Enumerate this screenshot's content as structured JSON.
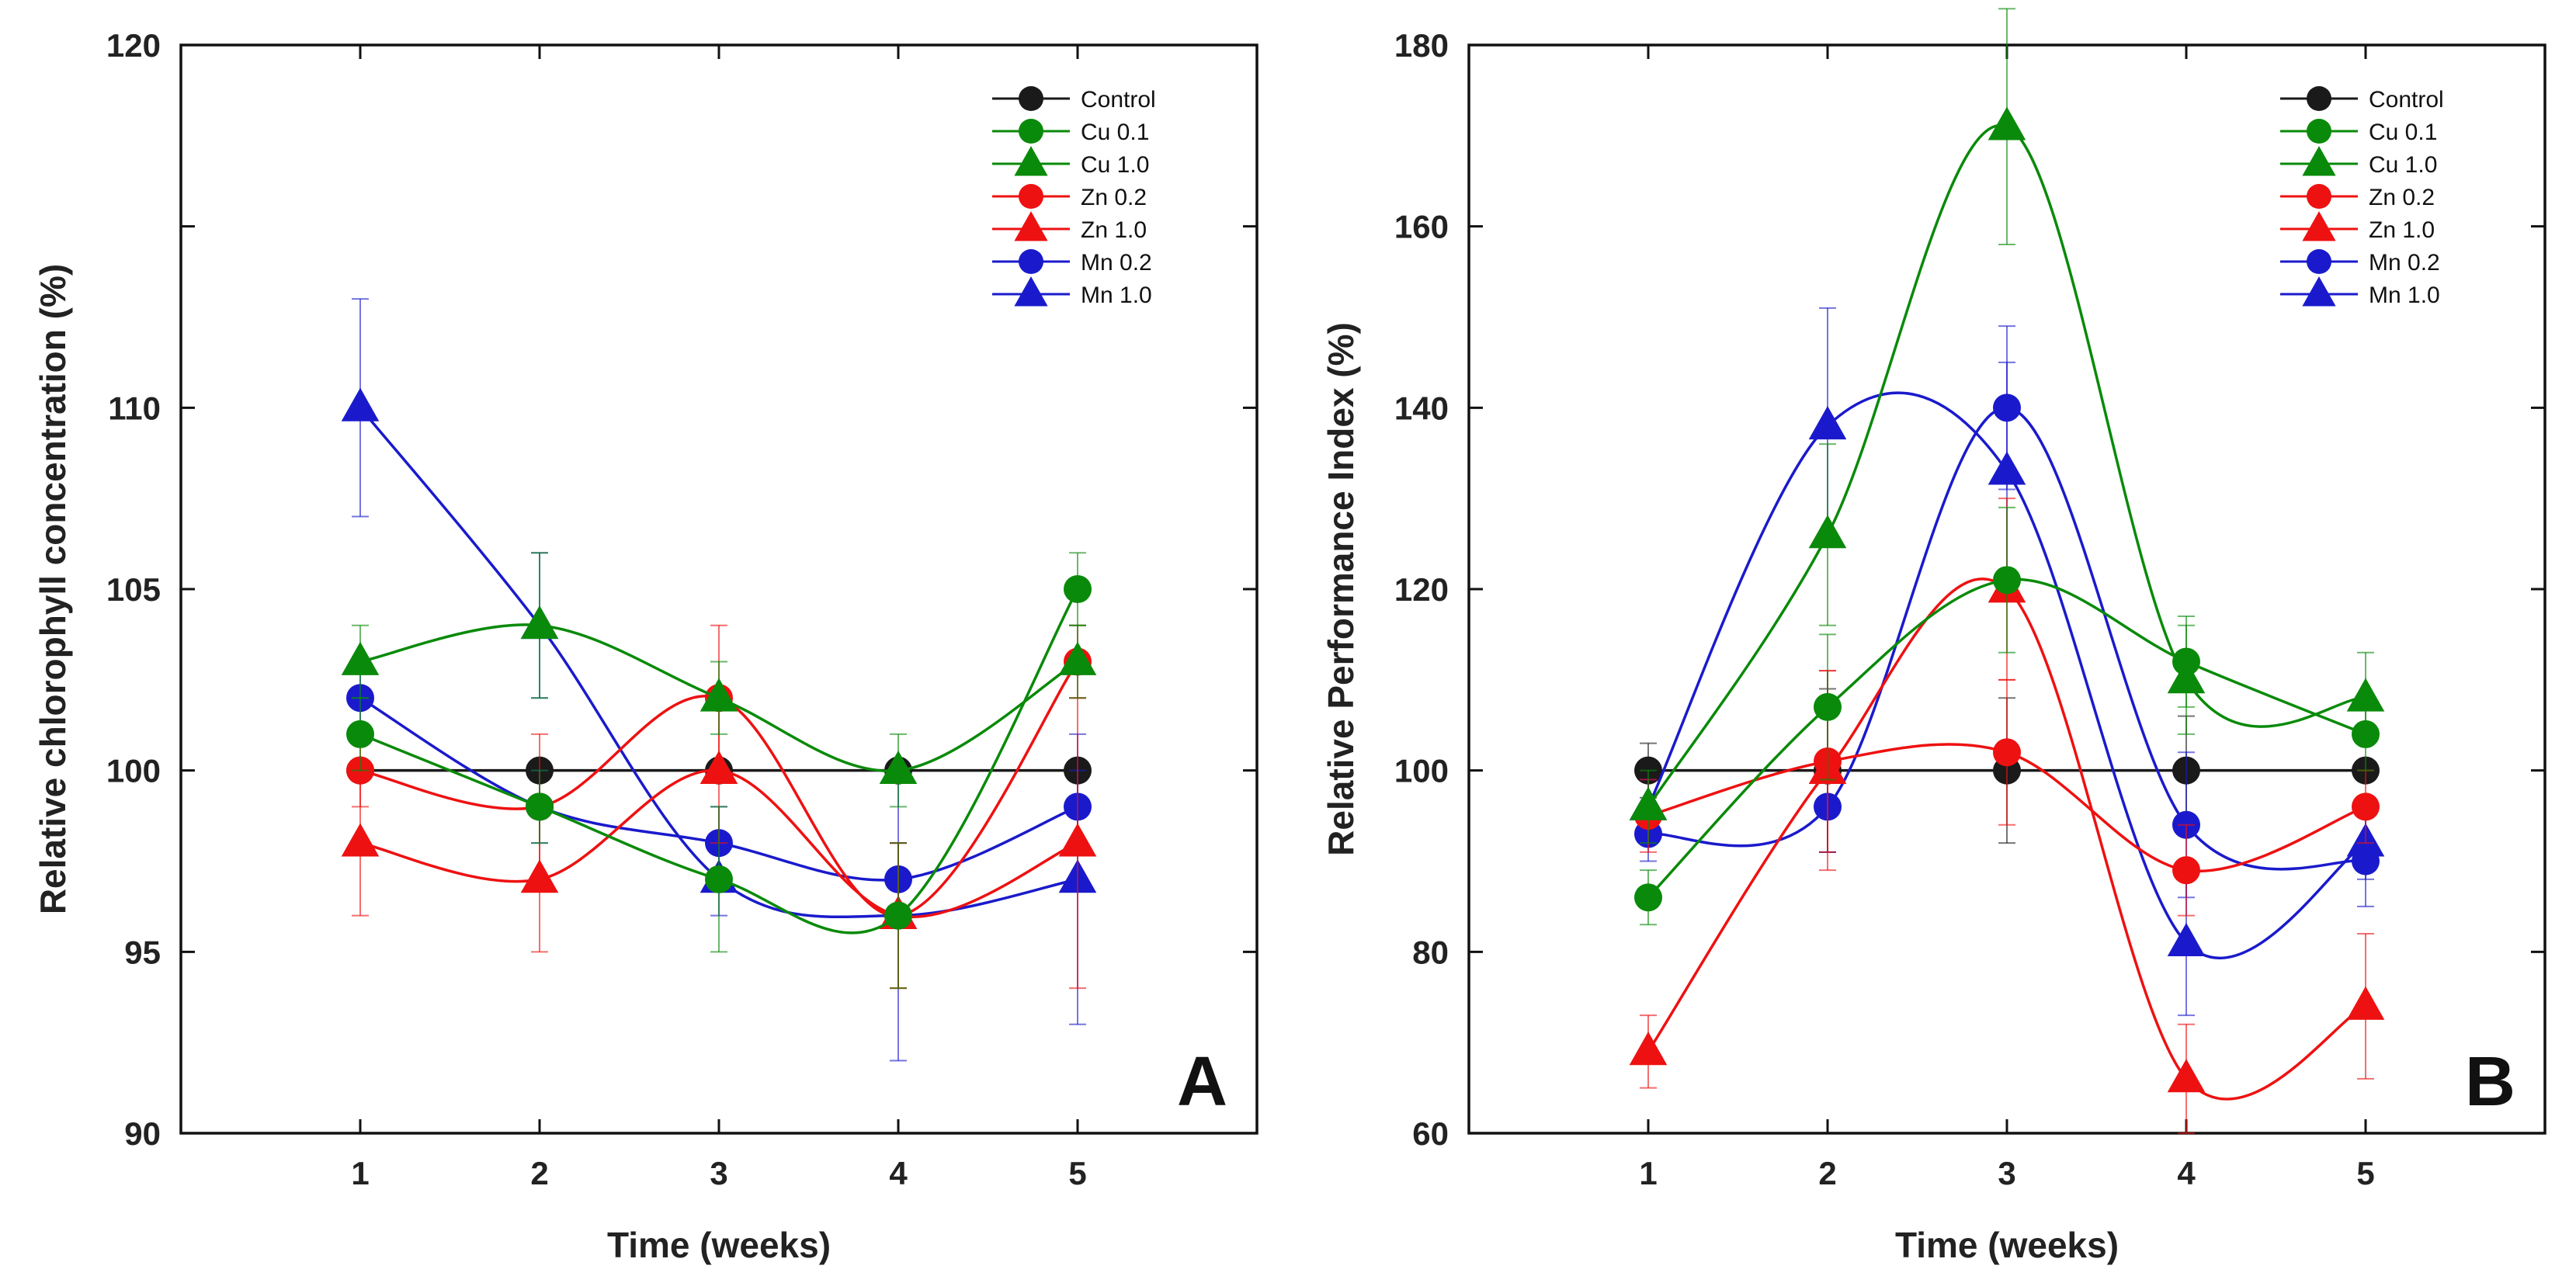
{
  "colors": {
    "black": "#1a1a1a",
    "green": "#0a8a0a",
    "red": "#ee1111",
    "blue": "#1a1acc"
  },
  "chart_data": [
    {
      "type": "line",
      "panel_label": "A",
      "xlabel": "Time (weeks)",
      "ylabel": "Relative chlorophyll concentration (%)",
      "xlim": [
        0,
        6
      ],
      "ylim": [
        90,
        120
      ],
      "x": [
        1,
        2,
        3,
        4,
        5
      ],
      "x_ticks": [
        "1",
        "2",
        "3",
        "4",
        "5"
      ],
      "y_ticks": [
        90,
        95,
        100,
        105,
        110,
        115,
        120
      ],
      "y_tick_labels": [
        "90",
        "95",
        "100",
        "105",
        "110",
        "",
        "120"
      ],
      "legend_position": "top-right",
      "series": [
        {
          "name": "Control",
          "color": "black",
          "marker": "circle",
          "values": [
            100,
            100,
            100,
            100,
            100
          ],
          "err": [
            0,
            0,
            0,
            0,
            0
          ]
        },
        {
          "name": "Cu 0.1",
          "color": "green",
          "marker": "circle",
          "values": [
            101,
            99,
            97,
            96,
            105
          ],
          "err": [
            1,
            1,
            2,
            2,
            1
          ]
        },
        {
          "name": "Cu 1.0",
          "color": "green",
          "marker": "triangle",
          "values": [
            103,
            104,
            102,
            100,
            103
          ],
          "err": [
            1,
            2,
            1,
            1,
            1
          ]
        },
        {
          "name": "Zn 0.2",
          "color": "red",
          "marker": "circle",
          "values": [
            100,
            99,
            102,
            96,
            103
          ],
          "err": [
            1,
            2,
            2,
            2,
            1
          ]
        },
        {
          "name": "Zn 1.0",
          "color": "red",
          "marker": "triangle",
          "values": [
            98,
            97,
            100,
            96,
            98
          ],
          "err": [
            2,
            2,
            2,
            2,
            4
          ]
        },
        {
          "name": "Mn 0.2",
          "color": "blue",
          "marker": "circle",
          "values": [
            102,
            99,
            98,
            97,
            99
          ],
          "err": [
            1,
            1,
            1,
            1,
            1
          ]
        },
        {
          "name": "Mn 1.0",
          "color": "blue",
          "marker": "triangle",
          "values": [
            110,
            104,
            97,
            96,
            97
          ],
          "err": [
            3,
            2,
            1,
            4,
            4
          ]
        }
      ]
    },
    {
      "type": "line",
      "panel_label": "B",
      "xlabel": "Time (weeks)",
      "ylabel": "Relative Performance Index (%)",
      "xlim": [
        0,
        6
      ],
      "ylim": [
        60,
        180
      ],
      "x": [
        1,
        2,
        3,
        4,
        5
      ],
      "x_ticks": [
        "1",
        "2",
        "3",
        "4",
        "5"
      ],
      "y_ticks": [
        60,
        80,
        100,
        120,
        140,
        160,
        180
      ],
      "y_tick_labels": [
        "60",
        "80",
        "100",
        "120",
        "140",
        "160",
        "180"
      ],
      "legend_position": "top-right",
      "series": [
        {
          "name": "Control",
          "color": "black",
          "marker": "circle",
          "values": [
            100,
            100,
            100,
            100,
            100
          ],
          "err": [
            3,
            9,
            8,
            6,
            0
          ]
        },
        {
          "name": "Cu 0.1",
          "color": "green",
          "marker": "circle",
          "values": [
            86,
            107,
            121,
            112,
            104
          ],
          "err": [
            3,
            8,
            8,
            5,
            4
          ]
        },
        {
          "name": "Cu 1.0",
          "color": "green",
          "marker": "triangle",
          "values": [
            96,
            126,
            171,
            110,
            108
          ],
          "err": [
            4,
            10,
            13,
            6,
            5
          ]
        },
        {
          "name": "Zn 0.2",
          "color": "red",
          "marker": "circle",
          "values": [
            95,
            101,
            102,
            89,
            96
          ],
          "err": [
            4,
            10,
            8,
            5,
            4
          ]
        },
        {
          "name": "Zn 1.0",
          "color": "red",
          "marker": "triangle",
          "values": [
            69,
            100,
            120,
            66,
            74
          ],
          "err": [
            4,
            11,
            10,
            6,
            8
          ]
        },
        {
          "name": "Mn 0.2",
          "color": "blue",
          "marker": "circle",
          "values": [
            93,
            96,
            140,
            94,
            90
          ],
          "err": [
            3,
            5,
            9,
            8,
            5
          ]
        },
        {
          "name": "Mn 1.0",
          "color": "blue",
          "marker": "triangle",
          "values": [
            96,
            138,
            133,
            81,
            92
          ],
          "err": [
            3,
            13,
            12,
            8,
            4
          ]
        }
      ]
    }
  ]
}
